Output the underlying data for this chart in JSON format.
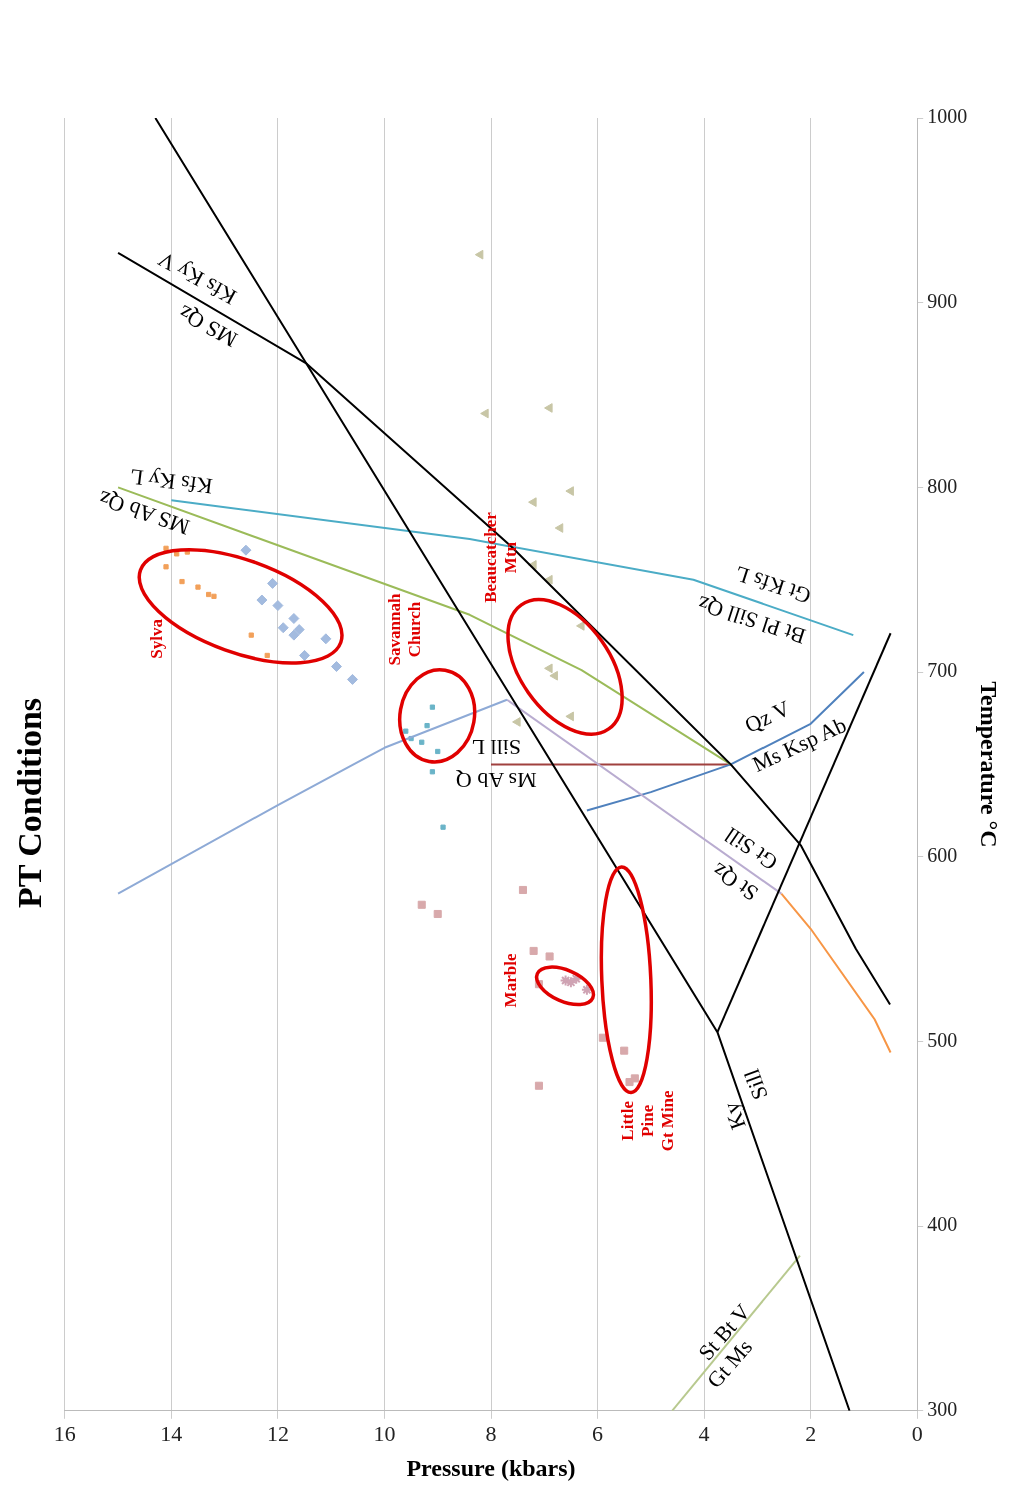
{
  "chart_data": {
    "type": "line",
    "title": "PT Conditions",
    "xlabel": "Pressure (kbars)",
    "ylabel": "Temperature °C",
    "xlim": [
      16,
      0
    ],
    "xticks": [
      16,
      14,
      12,
      10,
      8,
      6,
      4,
      2,
      0
    ],
    "ylim": [
      300,
      1000
    ],
    "yticks": [
      300,
      400,
      500,
      600,
      700,
      800,
      900,
      1000
    ],
    "grid": "x",
    "series": [
      {
        "marker": "none",
        "color": "#000000",
        "x": [
          1.27,
          3.75,
          14.3
        ],
        "values": [
          300,
          505,
          1000
        ]
      },
      {
        "marker": "none",
        "color": "#000000",
        "x": [
          15.0,
          11.46,
          7.62,
          3.5,
          2.18,
          1.15,
          0.51
        ],
        "values": [
          927,
          867,
          768,
          650,
          606,
          550,
          520
        ]
      },
      {
        "marker": "none",
        "color": "#000000",
        "x": [
          3.75,
          0.5
        ],
        "values": [
          505,
          721
        ]
      },
      {
        "marker": "none",
        "color": "#9bbb59",
        "x": [
          15.0,
          8.4,
          6.3,
          3.5
        ],
        "values": [
          800,
          731,
          701,
          650
        ]
      },
      {
        "marker": "none",
        "color": "#4bacc6",
        "x": [
          14.0,
          8.4,
          4.2,
          1.2
        ],
        "values": [
          793,
          772,
          750,
          720
        ]
      },
      {
        "marker": "none",
        "color": "#8eaad6",
        "x": [
          15.0,
          12.0,
          10.0,
          7.7
        ],
        "values": [
          580,
          628,
          659,
          685
        ]
      },
      {
        "marker": "none",
        "color": "#b9acd0",
        "x": [
          7.7,
          2.55
        ],
        "values": [
          685,
          580
        ]
      },
      {
        "marker": "none",
        "color": "#f79646",
        "x": [
          2.55,
          2.0,
          0.8,
          0.5
        ],
        "values": [
          580,
          561,
          512,
          494
        ]
      },
      {
        "marker": "none",
        "color": "#4f81bd",
        "x": [
          6.2,
          5.0,
          3.5,
          2.0,
          1.0
        ],
        "values": [
          625,
          635,
          650,
          672,
          700
        ]
      },
      {
        "marker": "none",
        "color": "#a0413f",
        "x": [
          8.0,
          3.5
        ],
        "values": [
          650,
          650
        ]
      },
      {
        "marker": "none",
        "color": "#b8c98f",
        "x": [
          4.6,
          2.2
        ],
        "values": [
          300,
          384
        ]
      },
      {
        "type": "scatter",
        "marker": "square",
        "color": "#f2a05a",
        "x": [
          14.1,
          13.9,
          13.7,
          14.1,
          13.8,
          13.5,
          13.3,
          13.2,
          12.5,
          12.2
        ],
        "values": [
          767,
          764,
          765,
          757,
          749,
          746,
          742,
          741,
          720,
          709
        ]
      },
      {
        "type": "scatter",
        "marker": "diamond",
        "color": "#a3bbdf",
        "x": [
          12.6,
          12.1,
          12.3,
          12.0,
          11.7,
          11.9,
          11.6,
          11.7,
          11.1,
          11.5,
          10.9,
          10.6
        ],
        "values": [
          766,
          748,
          739,
          736,
          729,
          724,
          723,
          720,
          718,
          709,
          703,
          696
        ]
      },
      {
        "type": "scatter",
        "marker": "square",
        "color": "#6ab4c8",
        "x": [
          9.1,
          9.2,
          9.6,
          9.5,
          9.3,
          9.0,
          9.1,
          8.9
        ],
        "values": [
          681,
          671,
          668,
          664,
          662,
          657,
          646,
          616
        ]
      },
      {
        "type": "scatter",
        "marker": "square",
        "color": "#d8a9ab",
        "x": [
          9.3,
          9.0,
          7.4,
          7.2,
          6.9,
          7.1,
          5.9,
          5.5,
          5.4,
          5.3,
          7.1
        ],
        "values": [
          574,
          569,
          582,
          549,
          546,
          531,
          502,
          495,
          478,
          480,
          476
        ]
      },
      {
        "type": "scatter",
        "marker": "cross",
        "color": "#cfa3b3",
        "x": [
          6.6,
          6.5,
          6.4,
          6.2
        ],
        "values": [
          533,
          532,
          534,
          528
        ]
      },
      {
        "type": "scatter",
        "marker": "triangle",
        "color": "#c8c6a6",
        "x": [
          8.2,
          8.1,
          6.9,
          7.2,
          6.5,
          6.7,
          7.2,
          6.9,
          6.3,
          6.9,
          6.8,
          6.5,
          7.5
        ],
        "values": [
          926,
          840,
          843,
          792,
          798,
          778,
          758,
          750,
          725,
          702,
          698,
          676,
          673
        ]
      }
    ],
    "annotations": [
      "MS Qz",
      "Kfs Ky V",
      "Kfs Ky L",
      "MS Ab Qz",
      "Gt Kfs L",
      "Bt Pl Sill Qz",
      "Qz V",
      "Ms Ksp Ab",
      "Sill L",
      "Ms Ab Q",
      "Gt Sill",
      "St Qz",
      "Ky",
      "Sill",
      "St Bt V",
      "Gt Ms",
      "Sylva",
      "Savannah\nChurch",
      "Beaucatcher\nMtn",
      "Marble",
      "Little\nPine\nGt Mine"
    ]
  }
}
